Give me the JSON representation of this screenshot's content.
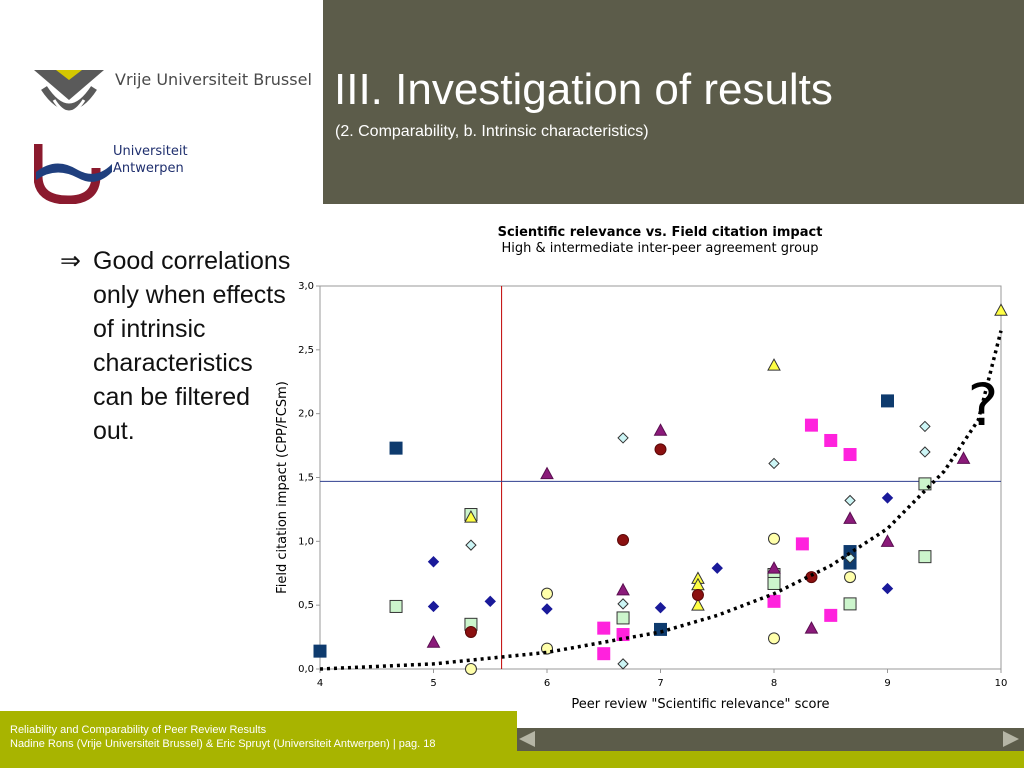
{
  "slide": {
    "title": "III. Investigation of results",
    "subtitle": "(2. Comparability, b. Intrinsic characteristics)"
  },
  "logos": {
    "vub_name": "Vrije Universiteit Brussel",
    "ua_line1": "Universiteit",
    "ua_line2": "Antwerpen"
  },
  "bullet": {
    "symbol": "⇒",
    "text": "Good correlations only when effects of intrinsic characteristics can be filtered out."
  },
  "annotation": "?",
  "footer": {
    "line1": "Reliability and Comparability of Peer Review Results",
    "line2": "Nadine Rons (Vrije Universiteit Brussel) & Eric Spruyt (Universiteit Antwerpen) |   pag. 18"
  },
  "colors": {
    "header": "#5c5c4a",
    "footer": "#a8b400",
    "vline": "#c00000",
    "hline": "#2f3f8f"
  },
  "chart_data": {
    "type": "scatter",
    "title": "Scientific relevance vs. Field citation impact",
    "subtitle": "High & intermediate inter-peer agreement group",
    "xlabel": "Peer review \"Scientific relevance\" score",
    "ylabel": "Field citation impact (CPP/FCSm)",
    "xlim": [
      4,
      10
    ],
    "ylim": [
      0,
      3
    ],
    "x_ticks": [
      "4",
      "5",
      "6",
      "7",
      "8",
      "9",
      "10"
    ],
    "y_ticks": [
      "0,0",
      "0,5",
      "1,0",
      "1,5",
      "2,0",
      "2,5",
      "3,0"
    ],
    "grid": false,
    "reference_lines": {
      "vertical_x": 5.6,
      "horizontal_y": 1.47
    },
    "series": [
      {
        "marker": "square",
        "fill": "#0e3b6e",
        "stroke": "#0e3b6e",
        "points": [
          [
            4.0,
            0.14
          ],
          [
            4.67,
            1.73
          ],
          [
            7.0,
            0.31
          ],
          [
            8.67,
            0.92
          ],
          [
            8.67,
            0.83
          ],
          [
            9.0,
            2.1
          ]
        ]
      },
      {
        "marker": "square",
        "fill": "#ccf5cc",
        "stroke": "#333333",
        "points": [
          [
            4.67,
            0.49
          ],
          [
            5.33,
            1.21
          ],
          [
            5.33,
            0.35
          ],
          [
            6.67,
            0.4
          ],
          [
            8.0,
            0.74
          ],
          [
            8.0,
            0.67
          ],
          [
            8.67,
            0.51
          ],
          [
            9.33,
            1.45
          ],
          [
            9.33,
            0.88
          ]
        ]
      },
      {
        "marker": "square",
        "fill": "#ff22dd",
        "stroke": "#ff22dd",
        "points": [
          [
            6.5,
            0.32
          ],
          [
            6.5,
            0.12
          ],
          [
            6.67,
            0.27
          ],
          [
            8.0,
            0.53
          ],
          [
            8.25,
            0.98
          ],
          [
            8.33,
            1.91
          ],
          [
            8.5,
            1.79
          ],
          [
            8.5,
            0.42
          ],
          [
            8.67,
            1.68
          ]
        ]
      },
      {
        "marker": "diamond",
        "fill": "#1a1a9a",
        "stroke": "#1a1a9a",
        "points": [
          [
            5.0,
            0.84
          ],
          [
            5.0,
            0.49
          ],
          [
            5.5,
            0.53
          ],
          [
            6.0,
            0.47
          ],
          [
            7.0,
            0.48
          ],
          [
            7.5,
            0.79
          ],
          [
            9.0,
            1.34
          ],
          [
            9.0,
            0.63
          ]
        ]
      },
      {
        "marker": "diamond",
        "fill": "#ccf5f5",
        "stroke": "#333333",
        "points": [
          [
            5.33,
            0.97
          ],
          [
            6.67,
            1.81
          ],
          [
            6.67,
            0.51
          ],
          [
            6.67,
            0.04
          ],
          [
            8.0,
            1.61
          ],
          [
            8.67,
            1.32
          ],
          [
            8.67,
            0.87
          ],
          [
            9.33,
            1.9
          ],
          [
            9.33,
            1.7
          ]
        ]
      },
      {
        "marker": "triangle",
        "fill": "#8b1a7a",
        "stroke": "#5a0f50",
        "points": [
          [
            5.0,
            0.21
          ],
          [
            6.0,
            1.53
          ],
          [
            6.67,
            0.62
          ],
          [
            7.0,
            1.87
          ],
          [
            8.0,
            0.79
          ],
          [
            8.33,
            0.32
          ],
          [
            8.67,
            1.18
          ],
          [
            9.0,
            1.0
          ],
          [
            9.67,
            1.65
          ]
        ]
      },
      {
        "marker": "triangle",
        "fill": "#ffff44",
        "stroke": "#333333",
        "points": [
          [
            5.33,
            1.19
          ],
          [
            7.33,
            0.71
          ],
          [
            7.33,
            0.66
          ],
          [
            7.33,
            0.5
          ],
          [
            8.0,
            2.38
          ],
          [
            10.0,
            2.81
          ]
        ]
      },
      {
        "marker": "circle",
        "fill": "#8b1010",
        "stroke": "#5a0808",
        "points": [
          [
            5.33,
            0.29
          ],
          [
            6.67,
            1.01
          ],
          [
            7.0,
            1.72
          ],
          [
            7.33,
            0.58
          ],
          [
            8.33,
            0.72
          ]
        ]
      },
      {
        "marker": "circle",
        "fill": "#ffffaa",
        "stroke": "#333333",
        "points": [
          [
            5.33,
            0.0
          ],
          [
            6.0,
            0.59
          ],
          [
            6.0,
            0.16
          ],
          [
            8.0,
            1.02
          ],
          [
            8.0,
            0.24
          ],
          [
            8.67,
            0.72
          ]
        ]
      }
    ],
    "trend_curve": [
      [
        4.0,
        0.0
      ],
      [
        5.0,
        0.04
      ],
      [
        6.0,
        0.13
      ],
      [
        7.0,
        0.29
      ],
      [
        7.5,
        0.42
      ],
      [
        8.0,
        0.59
      ],
      [
        8.5,
        0.81
      ],
      [
        9.0,
        1.1
      ],
      [
        9.5,
        1.55
      ],
      [
        9.8,
        1.95
      ],
      [
        10.0,
        2.65
      ]
    ]
  }
}
